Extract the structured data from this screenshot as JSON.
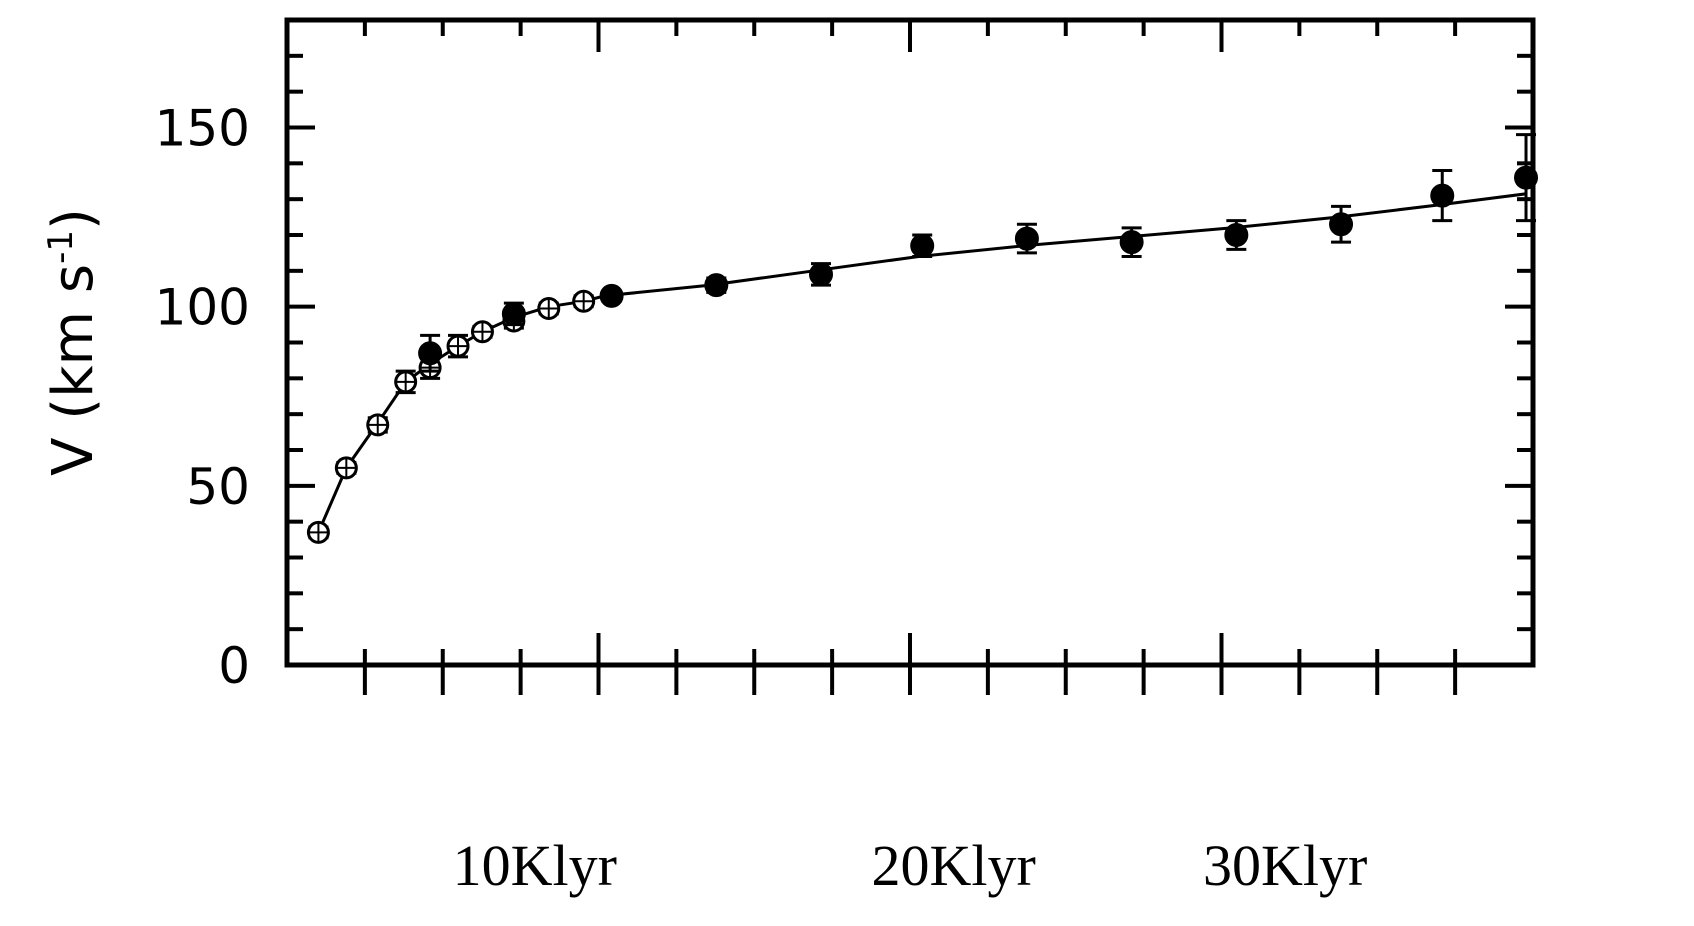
{
  "chart_data": {
    "type": "scatter",
    "title": "",
    "ylabel": {
      "prefix": "V (km s",
      "sup": "-1",
      "suffix": ")"
    },
    "ylim": [
      0,
      180
    ],
    "y_ticks": [
      "0",
      "50",
      "100",
      "150"
    ],
    "x_labels": [
      {
        "text": "10Klyr",
        "at": 10
      },
      {
        "text": "20Klyr",
        "at": 22
      },
      {
        "text": "30Klyr",
        "at": 31.5
      }
    ],
    "xlim": [
      2.9,
      38.6
    ],
    "grid": false,
    "fit_line": [
      [
        3.8,
        37
      ],
      [
        4.6,
        55
      ],
      [
        5.5,
        67.5
      ],
      [
        6.3,
        79
      ],
      [
        7,
        84
      ],
      [
        7.8,
        89
      ],
      [
        8.5,
        93
      ],
      [
        9.4,
        97
      ],
      [
        10.4,
        100
      ],
      [
        11.4,
        101.5
      ],
      [
        12,
        103
      ],
      [
        15,
        106
      ],
      [
        18,
        110
      ],
      [
        21,
        114
      ],
      [
        24,
        117
      ],
      [
        27,
        119.5
      ],
      [
        30,
        122
      ],
      [
        33,
        125
      ],
      [
        36,
        128.5
      ],
      [
        38.4,
        131.5
      ]
    ],
    "series": [
      {
        "marker": "open",
        "points": [
          {
            "x": 3.8,
            "y": 37,
            "err": 1.5
          },
          {
            "x": 4.6,
            "y": 55,
            "err": 1.5
          },
          {
            "x": 5.5,
            "y": 67,
            "err": 2
          },
          {
            "x": 6.3,
            "y": 79,
            "err": 3
          },
          {
            "x": 7,
            "y": 83,
            "err": 3
          },
          {
            "x": 7.8,
            "y": 89,
            "err": 3
          },
          {
            "x": 8.5,
            "y": 93,
            "err": 1.5
          },
          {
            "x": 9.4,
            "y": 96,
            "err": 2
          },
          {
            "x": 10.4,
            "y": 99.5,
            "err": 1.5
          },
          {
            "x": 11.4,
            "y": 101.5,
            "err": 1.5
          }
        ]
      },
      {
        "marker": "filled",
        "points": [
          {
            "x": 7,
            "y": 87,
            "err": 5
          },
          {
            "x": 9.4,
            "y": 98,
            "err": 3
          },
          {
            "x": 12.2,
            "y": 103,
            "err": 1.5
          },
          {
            "x": 15.2,
            "y": 106,
            "err": 2
          },
          {
            "x": 18.2,
            "y": 109,
            "err": 3
          },
          {
            "x": 21.1,
            "y": 117,
            "err": 3
          },
          {
            "x": 24.1,
            "y": 119,
            "err": 4
          },
          {
            "x": 27.1,
            "y": 118,
            "err": 4
          },
          {
            "x": 30.1,
            "y": 120,
            "err": 4
          },
          {
            "x": 33.1,
            "y": 123,
            "err": 5
          },
          {
            "x": 36,
            "y": 131,
            "err": 7
          },
          {
            "x": 38.4,
            "y": 136,
            "err": 12
          }
        ]
      }
    ]
  }
}
